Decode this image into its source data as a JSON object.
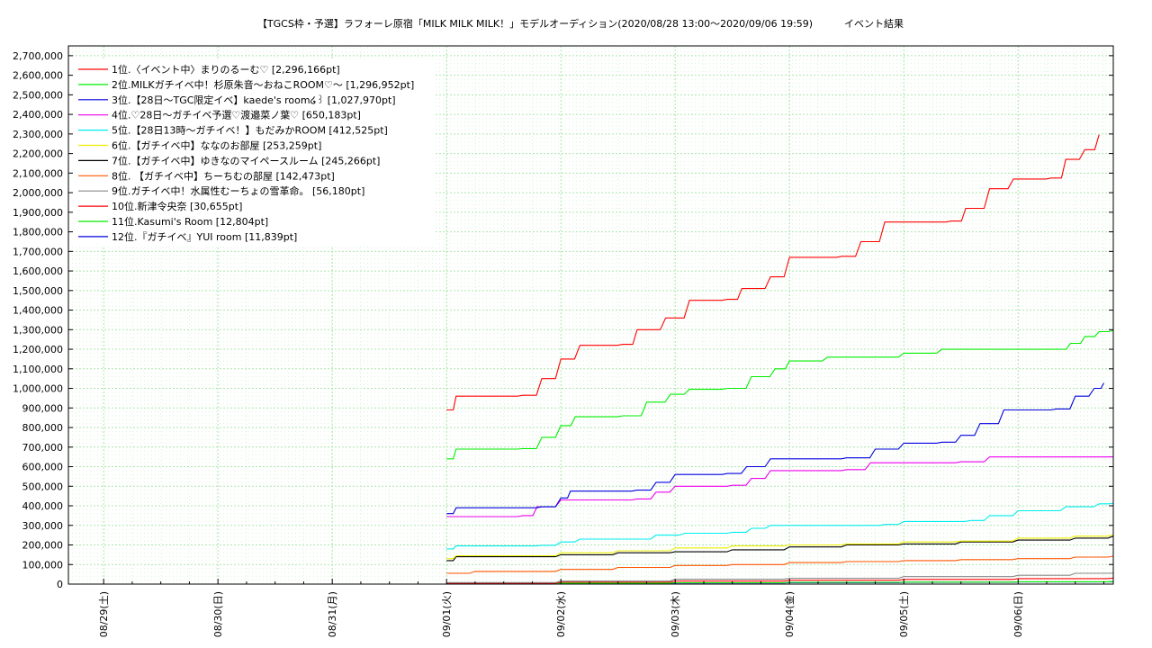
{
  "chart_data": {
    "type": "line",
    "title": "【TGCS枠・予選】ラフォーレ原宿「MILK MILK MILK！」モデルオーディション(2020/08/28 13:00〜2020/09/06 19:59)          イベント結果",
    "xlabel": "",
    "ylabel": "",
    "ylim": [
      0,
      2750000
    ],
    "xlim": [
      "08/29 00:00",
      "09/06 19:59"
    ],
    "grid": true,
    "legend_position": "top-left",
    "x_tick_labels": [
      "08/29(土)",
      "08/30(日)",
      "08/31(月)",
      "09/01(火)",
      "09/02(水)",
      "09/03(木)",
      "09/04(金)",
      "09/05(土)",
      "09/06(日)"
    ],
    "y_tick_labels": [
      "0",
      "100,000",
      "200,000",
      "300,000",
      "400,000",
      "500,000",
      "600,000",
      "700,000",
      "800,000",
      "900,000",
      "1,000,000",
      "1,100,000",
      "1,200,000",
      "1,300,000",
      "1,400,000",
      "1,500,000",
      "1,600,000",
      "1,700,000",
      "1,800,000",
      "1,900,000",
      "2,000,000",
      "2,100,000",
      "2,200,000",
      "2,300,000",
      "2,400,000",
      "2,500,000",
      "2,600,000",
      "2,700,000"
    ],
    "series": [
      {
        "name": "1位.〈イベント中〉まりのるーむ♡ [2,296,166pt]",
        "color": "#ff0000",
        "points": [
          [
            "09/01 00:00",
            890000
          ],
          [
            "09/01 02:00",
            960000
          ],
          [
            "09/01 16:00",
            965000
          ],
          [
            "09/01 20:00",
            1050000
          ],
          [
            "09/02 00:00",
            1150000
          ],
          [
            "09/02 04:00",
            1220000
          ],
          [
            "09/02 13:00",
            1225000
          ],
          [
            "09/02 16:00",
            1300000
          ],
          [
            "09/02 22:00",
            1360000
          ],
          [
            "09/03 03:00",
            1450000
          ],
          [
            "09/03 11:00",
            1455000
          ],
          [
            "09/03 14:00",
            1510000
          ],
          [
            "09/03 20:00",
            1570000
          ],
          [
            "09/04 00:00",
            1670000
          ],
          [
            "09/04 11:00",
            1675000
          ],
          [
            "09/04 15:00",
            1750000
          ],
          [
            "09/04 20:00",
            1850000
          ],
          [
            "09/05 10:00",
            1855000
          ],
          [
            "09/05 13:00",
            1920000
          ],
          [
            "09/05 18:00",
            2020000
          ],
          [
            "09/05 23:00",
            2070000
          ],
          [
            "09/06 07:00",
            2075000
          ],
          [
            "09/06 10:00",
            2170000
          ],
          [
            "09/06 14:00",
            2220000
          ],
          [
            "09/06 17:00",
            2296166
          ]
        ]
      },
      {
        "name": "2位.MILKガチイベ中！杉原朱音〜おねこROOM♡〜 [1,296,952pt]",
        "color": "#00ee00",
        "points": [
          [
            "09/01 00:00",
            640000
          ],
          [
            "09/01 02:00",
            690000
          ],
          [
            "09/01 16:00",
            692000
          ],
          [
            "09/01 20:00",
            750000
          ],
          [
            "09/02 00:00",
            810000
          ],
          [
            "09/02 03:00",
            855000
          ],
          [
            "09/02 13:00",
            860000
          ],
          [
            "09/02 18:00",
            930000
          ],
          [
            "09/02 23:00",
            970000
          ],
          [
            "09/03 03:00",
            995000
          ],
          [
            "09/03 11:00",
            1000000
          ],
          [
            "09/03 16:00",
            1060000
          ],
          [
            "09/03 21:00",
            1100000
          ],
          [
            "09/04 00:00",
            1140000
          ],
          [
            "09/04 08:00",
            1160000
          ],
          [
            "09/04 20:00",
            1160000
          ],
          [
            "09/05 00:00",
            1180000
          ],
          [
            "09/05 08:00",
            1200000
          ],
          [
            "09/05 18:00",
            1200000
          ],
          [
            "09/06 08:00",
            1200000
          ],
          [
            "09/06 11:00",
            1230000
          ],
          [
            "09/06 14:00",
            1265000
          ],
          [
            "09/06 17:00",
            1290000
          ],
          [
            "09/06 19:59",
            1296952
          ]
        ]
      },
      {
        "name": "3位.【28日〜TGC限定イベ】kaede's room໒꒱ [1,027,970pt]",
        "color": "#0000dd",
        "points": [
          [
            "09/01 00:00",
            360000
          ],
          [
            "09/01 02:00",
            390000
          ],
          [
            "09/01 20:00",
            395000
          ],
          [
            "09/02 00:00",
            440000
          ],
          [
            "09/02 02:00",
            475000
          ],
          [
            "09/02 16:00",
            480000
          ],
          [
            "09/02 20:00",
            520000
          ],
          [
            "09/03 00:00",
            560000
          ],
          [
            "09/03 11:00",
            565000
          ],
          [
            "09/03 15:00",
            600000
          ],
          [
            "09/03 20:00",
            640000
          ],
          [
            "09/04 12:00",
            645000
          ],
          [
            "09/04 18:00",
            690000
          ],
          [
            "09/05 00:00",
            720000
          ],
          [
            "09/05 08:00",
            725000
          ],
          [
            "09/05 12:00",
            760000
          ],
          [
            "09/05 16:00",
            820000
          ],
          [
            "09/05 21:00",
            890000
          ],
          [
            "09/06 08:00",
            895000
          ],
          [
            "09/06 12:00",
            960000
          ],
          [
            "09/06 16:00",
            1000000
          ],
          [
            "09/06 18:00",
            1027970
          ]
        ]
      },
      {
        "name": "4位.♡28日〜ガチイベ予選♡渡邉菜ノ葉♡ [650,183pt]",
        "color": "#ee00ee",
        "points": [
          [
            "09/01 00:00",
            345000
          ],
          [
            "09/01 16:00",
            350000
          ],
          [
            "09/01 19:00",
            395000
          ],
          [
            "09/02 00:00",
            430000
          ],
          [
            "09/02 16:00",
            435000
          ],
          [
            "09/02 20:00",
            470000
          ],
          [
            "09/03 00:00",
            500000
          ],
          [
            "09/03 12:00",
            505000
          ],
          [
            "09/03 16:00",
            540000
          ],
          [
            "09/03 20:00",
            580000
          ],
          [
            "09/04 12:00",
            585000
          ],
          [
            "09/04 17:00",
            620000
          ],
          [
            "09/05 12:00",
            625000
          ],
          [
            "09/05 18:00",
            650000
          ],
          [
            "09/06 19:59",
            650183
          ]
        ]
      },
      {
        "name": "5位.【28日13時〜ガチイベ！】もだみかROOM [412,525pt]",
        "color": "#00eeee",
        "points": [
          [
            "09/01 00:00",
            180000
          ],
          [
            "09/01 02:00",
            195000
          ],
          [
            "09/01 20:00",
            198000
          ],
          [
            "09/02 00:00",
            215000
          ],
          [
            "09/02 04:00",
            230000
          ],
          [
            "09/02 20:00",
            250000
          ],
          [
            "09/03 02:00",
            260000
          ],
          [
            "09/03 12:00",
            265000
          ],
          [
            "09/03 16:00",
            285000
          ],
          [
            "09/03 20:00",
            300000
          ],
          [
            "09/04 20:00",
            305000
          ],
          [
            "09/05 00:00",
            320000
          ],
          [
            "09/05 14:00",
            325000
          ],
          [
            "09/05 18:00",
            350000
          ],
          [
            "09/06 00:00",
            375000
          ],
          [
            "09/06 10:00",
            395000
          ],
          [
            "09/06 17:00",
            410000
          ],
          [
            "09/06 19:59",
            412525
          ]
        ]
      },
      {
        "name": "6位.【ガチイベ中】ななのお部屋 [253,259pt]",
        "color": "#eeee00",
        "points": [
          [
            "09/01 00:00",
            130000
          ],
          [
            "09/01 02:00",
            145000
          ],
          [
            "09/02 00:00",
            160000
          ],
          [
            "09/02 12:00",
            170000
          ],
          [
            "09/03 00:00",
            185000
          ],
          [
            "09/03 12:00",
            195000
          ],
          [
            "09/04 00:00",
            200000
          ],
          [
            "09/04 12:00",
            205000
          ],
          [
            "09/05 00:00",
            215000
          ],
          [
            "09/05 12:00",
            220000
          ],
          [
            "09/06 00:00",
            235000
          ],
          [
            "09/06 12:00",
            245000
          ],
          [
            "09/06 19:59",
            253259
          ]
        ]
      },
      {
        "name": "7位.【ガチイベ中】ゆきなのマイペースルーム [245,266pt]",
        "color": "#000000",
        "points": [
          [
            "09/01 00:00",
            120000
          ],
          [
            "09/01 02:00",
            140000
          ],
          [
            "09/02 00:00",
            150000
          ],
          [
            "09/02 12:00",
            160000
          ],
          [
            "09/03 00:00",
            165000
          ],
          [
            "09/03 12:00",
            175000
          ],
          [
            "09/04 00:00",
            190000
          ],
          [
            "09/04 12:00",
            200000
          ],
          [
            "09/05 00:00",
            205000
          ],
          [
            "09/05 12:00",
            215000
          ],
          [
            "09/06 00:00",
            225000
          ],
          [
            "09/06 12:00",
            235000
          ],
          [
            "09/06 19:59",
            245266
          ]
        ]
      },
      {
        "name": "8位.  【ガチイベ中】ちーちむの部屋 [142,473pt]",
        "color": "#ff5500",
        "points": [
          [
            "09/01 00:00",
            55000
          ],
          [
            "09/01 06:00",
            65000
          ],
          [
            "09/02 00:00",
            75000
          ],
          [
            "09/02 12:00",
            85000
          ],
          [
            "09/03 00:00",
            95000
          ],
          [
            "09/03 12:00",
            100000
          ],
          [
            "09/04 00:00",
            110000
          ],
          [
            "09/04 12:00",
            115000
          ],
          [
            "09/05 00:00",
            120000
          ],
          [
            "09/05 12:00",
            125000
          ],
          [
            "09/06 00:00",
            130000
          ],
          [
            "09/06 12:00",
            138000
          ],
          [
            "09/06 19:59",
            142473
          ]
        ]
      },
      {
        "name": "9位.ガチイベ中！水属性むーちょの雪革命。 [56,180pt]",
        "color": "#888888",
        "points": [
          [
            "09/01 00:00",
            8000
          ],
          [
            "09/02 00:00",
            15000
          ],
          [
            "09/03 00:00",
            25000
          ],
          [
            "09/04 00:00",
            30000
          ],
          [
            "09/05 00:00",
            38000
          ],
          [
            "09/06 00:00",
            45000
          ],
          [
            "09/06 12:00",
            55000
          ],
          [
            "09/06 19:59",
            56180
          ]
        ]
      },
      {
        "name": "10位.新津令央奈 [30,655pt]",
        "color": "#ff0000",
        "points": [
          [
            "09/01 00:00",
            5000
          ],
          [
            "09/02 00:00",
            10000
          ],
          [
            "09/03 00:00",
            15000
          ],
          [
            "09/04 00:00",
            20000
          ],
          [
            "09/05 00:00",
            24000
          ],
          [
            "09/06 00:00",
            28000
          ],
          [
            "09/06 19:59",
            30655
          ]
        ]
      },
      {
        "name": "11位.Kasumi's Room  [12,804pt]",
        "color": "#00ee00",
        "points": [
          [
            "09/01 00:00",
            3000
          ],
          [
            "09/02 00:00",
            5000
          ],
          [
            "09/03 00:00",
            7000
          ],
          [
            "09/04 00:00",
            9000
          ],
          [
            "09/05 00:00",
            10000
          ],
          [
            "09/06 00:00",
            12000
          ],
          [
            "09/06 19:59",
            12804
          ]
        ]
      },
      {
        "name": "12位.『ガチイベ』YUI room [11,839pt]",
        "color": "#0000dd",
        "points": [
          [
            "09/01 00:00",
            2000
          ],
          [
            "09/02 00:00",
            4000
          ],
          [
            "09/03 00:00",
            6000
          ],
          [
            "09/04 00:00",
            8000
          ],
          [
            "09/05 00:00",
            9500
          ],
          [
            "09/06 00:00",
            11000
          ],
          [
            "09/06 19:59",
            11839
          ]
        ]
      }
    ]
  }
}
